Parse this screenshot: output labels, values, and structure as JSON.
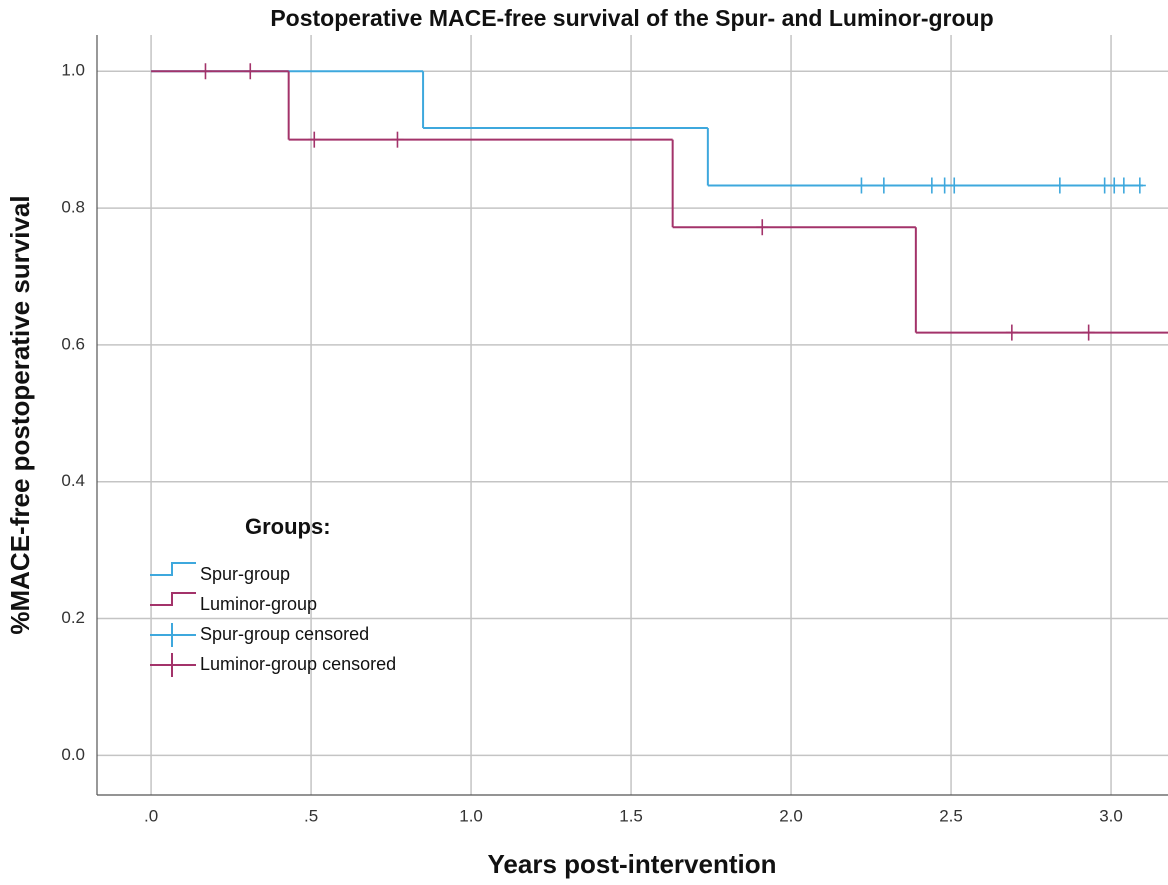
{
  "chart_data": {
    "type": "kaplan-meier",
    "title": "Postoperative MACE-free survival of the Spur- and Luminor-group",
    "x_label": "Years post-intervention",
    "y_label": "%MACE-free postoperative survival",
    "legend_title": "Groups:",
    "xlim": [
      -0.169,
      3.178
    ],
    "ylim": [
      -0.058,
      1.053
    ],
    "xticks": [
      {
        "value": 0,
        "label": ".0"
      },
      {
        "value": 0.5,
        "label": ".5"
      },
      {
        "value": 1,
        "label": "1.0"
      },
      {
        "value": 1.5,
        "label": "1.5"
      },
      {
        "value": 2,
        "label": "2.0"
      },
      {
        "value": 2.5,
        "label": "2.5"
      },
      {
        "value": 3,
        "label": "3.0"
      }
    ],
    "yticks": [
      {
        "value": 0,
        "label": "0.0"
      },
      {
        "value": 0.2,
        "label": "0.2"
      },
      {
        "value": 0.4,
        "label": "0.4"
      },
      {
        "value": 0.6,
        "label": "0.6"
      },
      {
        "value": 0.8,
        "label": "0.8"
      },
      {
        "value": 1,
        "label": "1.0"
      }
    ],
    "grid": true,
    "legend": "left",
    "series": [
      {
        "name": "Spur-group",
        "color": "#3ea8dd",
        "step": "post",
        "x": [
          0,
          0.85,
          1.74,
          3.1
        ],
        "values": [
          1.0,
          0.917,
          0.833,
          0.833
        ]
      },
      {
        "name": "Luminor-group",
        "color": "#a3336a",
        "step": "post",
        "x": [
          0,
          0.43,
          1.63,
          2.39,
          3.178
        ],
        "values": [
          1.0,
          0.9,
          0.772,
          0.618,
          0.618
        ]
      },
      {
        "name": "Spur-group censored",
        "color": "#3ea8dd",
        "marker": "+",
        "x": [
          2.22,
          2.29,
          2.44,
          2.48,
          2.51,
          2.84,
          2.98,
          3.01,
          3.04,
          3.09
        ],
        "values": [
          0.833,
          0.833,
          0.833,
          0.833,
          0.833,
          0.833,
          0.833,
          0.833,
          0.833,
          0.833
        ]
      },
      {
        "name": "Luminor-group censored",
        "color": "#a3336a",
        "marker": "+",
        "x": [
          0.17,
          0.31,
          0.51,
          0.77,
          1.91,
          2.69,
          2.93
        ],
        "values": [
          1.0,
          1.0,
          0.9,
          0.9,
          0.772,
          0.618,
          0.618
        ]
      }
    ]
  }
}
